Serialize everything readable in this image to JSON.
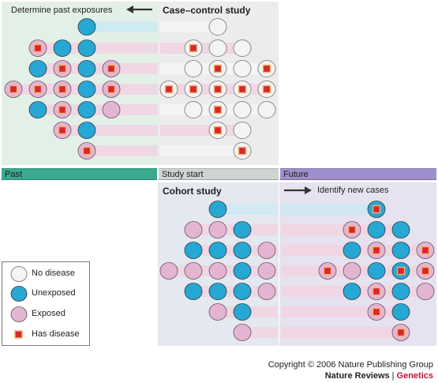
{
  "colors": {
    "green_panel": "#e3f0e7",
    "gray_panel": "#ececec",
    "blue_panel": "#e3e8f1",
    "lavender_panel": "#e6e2f0",
    "pink_stripe": "#f1d3e2",
    "blue_stripe": "#cde9f3",
    "past_bar": "#3aa990",
    "study_bar": "#cfd4d4",
    "future_bar": "#9f8fcc",
    "no_disease_fill": "#f4f4f4",
    "unexposed_fill": "#27a7d4",
    "exposed_fill": "#e4b5d3",
    "disease_square": "#d9262e",
    "accent_red": "#c4122f"
  },
  "case_control": {
    "title": "Case–control study",
    "note": "Determine past exposures",
    "arrow_icon": "arrow-left-icon"
  },
  "cohort": {
    "title": "Cohort study",
    "note": "Identify new cases",
    "arrow_icon": "arrow-right-icon"
  },
  "timeline": {
    "past": "Past",
    "study_start": "Study start",
    "future": "Future"
  },
  "legend": {
    "items": [
      {
        "label": "No disease",
        "icon": "white-circle-icon"
      },
      {
        "label": "Unexposed",
        "icon": "blue-circle-icon"
      },
      {
        "label": "Exposed",
        "icon": "pink-circle-icon"
      },
      {
        "label": "Has disease",
        "icon": "red-square-icon"
      }
    ]
  },
  "credits": {
    "copyright": "Copyright © 2006 Nature Publishing Group",
    "journal": "Nature Reviews",
    "separator": "|",
    "subject": "Genetics"
  },
  "grids": {
    "past": [
      [
        "",
        "",
        "",
        "U",
        ""
      ],
      [
        "",
        "ED",
        "U",
        "U",
        ""
      ],
      [
        "",
        "U",
        "ED",
        "U",
        "ED"
      ],
      [
        "ED",
        "ED",
        "ED",
        "U",
        "ED"
      ],
      [
        "",
        "U",
        "ED",
        "U",
        "E"
      ],
      [
        "",
        "",
        "ED",
        "U",
        ""
      ],
      [
        "",
        "",
        "",
        "ED",
        ""
      ]
    ],
    "case_control": [
      [
        "",
        "",
        "N",
        "",
        ""
      ],
      [
        "",
        "ND",
        "N",
        "N",
        ""
      ],
      [
        "",
        "N",
        "ND",
        "N",
        "ND"
      ],
      [
        "ND",
        "ND",
        "ND",
        "ND",
        "ND"
      ],
      [
        "",
        "N",
        "ND",
        "N",
        "N"
      ],
      [
        "",
        "",
        "ND",
        "N",
        ""
      ],
      [
        "",
        "",
        "",
        "ND",
        ""
      ]
    ],
    "cohort": [
      [
        "",
        "",
        "U",
        "",
        ""
      ],
      [
        "",
        "E",
        "E",
        "U",
        ""
      ],
      [
        "",
        "U",
        "U",
        "U",
        "E"
      ],
      [
        "E",
        "E",
        "E",
        "U",
        "E"
      ],
      [
        "",
        "U",
        "U",
        "U",
        "E"
      ],
      [
        "",
        "",
        "E",
        "U",
        ""
      ],
      [
        "",
        "",
        "",
        "E",
        ""
      ]
    ],
    "future": [
      [
        "",
        "",
        "UD",
        "",
        ""
      ],
      [
        "",
        "ED",
        "U",
        "U",
        ""
      ],
      [
        "",
        "U",
        "ED",
        "U",
        "ED"
      ],
      [
        "ED",
        "E",
        "U",
        "UD",
        "ED"
      ],
      [
        "",
        "U",
        "ED",
        "U",
        "E"
      ],
      [
        "",
        "",
        "ED",
        "U",
        ""
      ],
      [
        "",
        "",
        "",
        "ED",
        ""
      ]
    ]
  }
}
